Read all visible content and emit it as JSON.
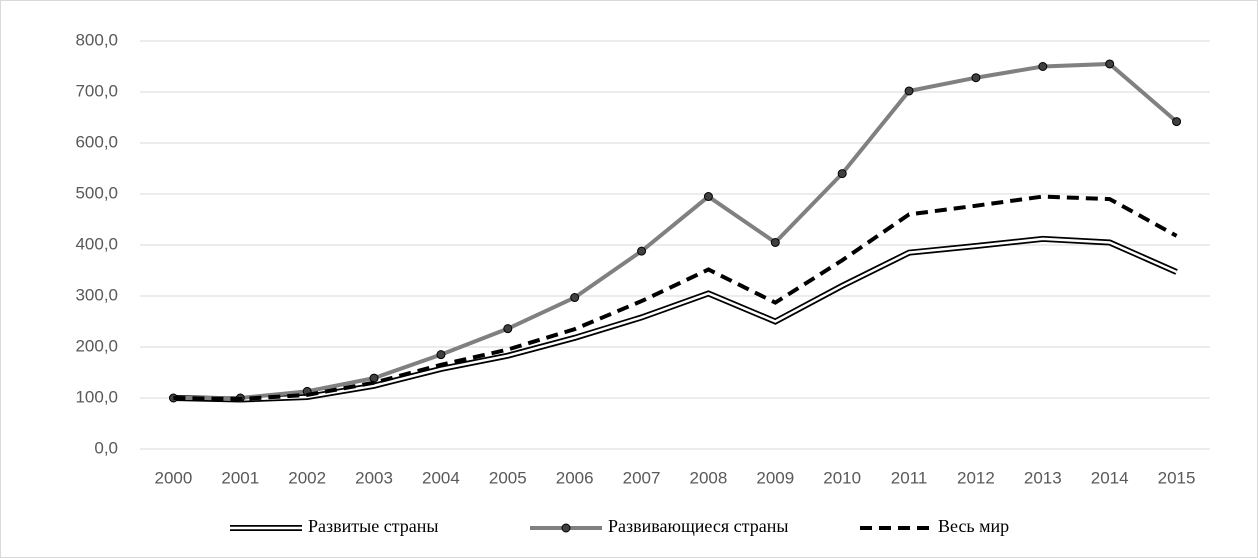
{
  "chart_data": {
    "type": "line",
    "categories": [
      "2000",
      "2001",
      "2002",
      "2003",
      "2004",
      "2005",
      "2006",
      "2007",
      "2008",
      "2009",
      "2010",
      "2011",
      "2012",
      "2013",
      "2014",
      "2015"
    ],
    "series": [
      {
        "name": "Развитые страны",
        "color": "#000000",
        "style": "double",
        "values": [
          100,
          97,
          102,
          124,
          157,
          183,
          218,
          258,
          305,
          250,
          320,
          385,
          398,
          412,
          405,
          347
        ]
      },
      {
        "name": "Развивающиеся страны",
        "color": "#808080",
        "style": "markers",
        "values": [
          100,
          100,
          113,
          139,
          185,
          236,
          297,
          388,
          495,
          405,
          540,
          702,
          728,
          750,
          755,
          642
        ]
      },
      {
        "name": "Весь мир",
        "color": "#000000",
        "style": "dashed",
        "values": [
          100,
          98,
          106,
          130,
          165,
          195,
          235,
          290,
          352,
          287,
          370,
          460,
          477,
          495,
          490,
          418
        ]
      }
    ],
    "ylim": [
      0,
      800
    ],
    "yticks": [
      {
        "value": 0,
        "label": "0,0"
      },
      {
        "value": 100,
        "label": "100,0"
      },
      {
        "value": 200,
        "label": "200,0"
      },
      {
        "value": 300,
        "label": "300,0"
      },
      {
        "value": 400,
        "label": "400,0"
      },
      {
        "value": 500,
        "label": "500,0"
      },
      {
        "value": 600,
        "label": "600,0"
      },
      {
        "value": 700,
        "label": "700,0"
      },
      {
        "value": 800,
        "label": "800,0"
      }
    ],
    "grid": true,
    "legend": "bottom"
  }
}
